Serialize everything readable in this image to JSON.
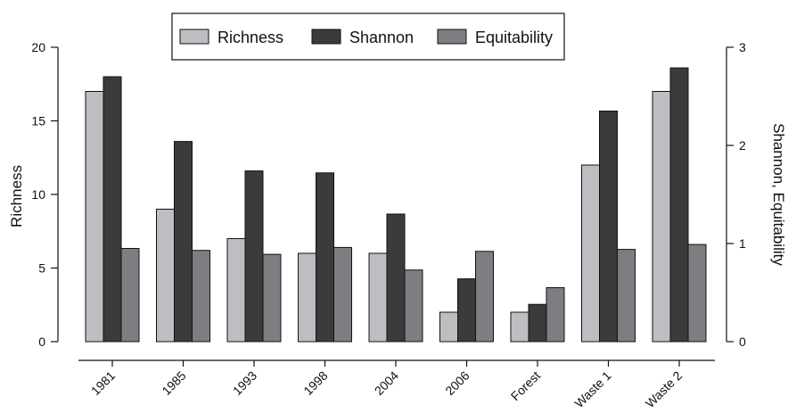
{
  "chart_data": {
    "type": "bar",
    "categories": [
      "1981",
      "1985",
      "1993",
      "1998",
      "2004",
      "2006",
      "Forest",
      "Waste 1",
      "Waste 2"
    ],
    "series": [
      {
        "name": "Richness",
        "axis": "left",
        "color": "#bdbec2",
        "values": [
          17,
          9,
          7,
          6,
          6,
          2,
          2,
          12,
          17
        ]
      },
      {
        "name": "Shannon",
        "axis": "right",
        "color": "#3b3b3b",
        "values": [
          2.7,
          2.04,
          1.74,
          1.72,
          1.3,
          0.64,
          0.38,
          2.35,
          2.79
        ]
      },
      {
        "name": "Equitability",
        "axis": "right",
        "color": "#7d7e82",
        "values": [
          0.95,
          0.93,
          0.89,
          0.96,
          0.73,
          0.92,
          0.55,
          0.94,
          0.99
        ]
      }
    ],
    "ylabel": "Richness",
    "ylabel_right": "Shannon, Equitability",
    "ylim": [
      0,
      20
    ],
    "ylim_right": [
      0,
      3
    ],
    "yticks": [
      "0",
      "5",
      "10",
      "15",
      "20"
    ],
    "yticks_right": [
      "0",
      "1",
      "2",
      "3"
    ],
    "legend_position": "top-center",
    "grid": false
  }
}
